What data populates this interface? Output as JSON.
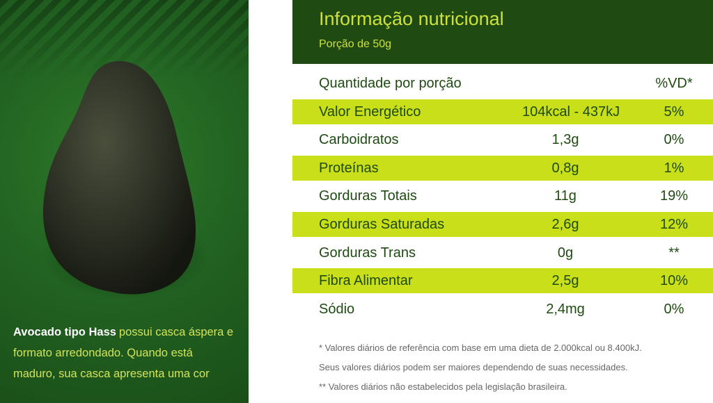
{
  "caption": {
    "bold": "Avocado tipo Hass",
    "text": "possui casca áspera e formato arredondado. Quando está maduro, sua casca apresenta uma cor"
  },
  "header": {
    "title": "Informação nutricional",
    "subtitle": "Porção de 50g"
  },
  "table": {
    "head": [
      "Quantidade por porção",
      "%VD*"
    ],
    "rows": [
      [
        "Valor Energético",
        "104kcal - 437kJ",
        "5%"
      ],
      [
        "Carboidratos",
        "1,3g",
        "0%"
      ],
      [
        "Proteínas",
        "0,8g",
        "1%"
      ],
      [
        "Gorduras Totais",
        "11g",
        "19%"
      ],
      [
        "Gorduras Saturadas",
        "2,6g",
        "12%"
      ],
      [
        "Gorduras Trans",
        "0g",
        "**"
      ],
      [
        "Fibra Alimentar",
        "2,5g",
        "10%"
      ],
      [
        "Sódio",
        "2,4mg",
        "0%"
      ]
    ]
  },
  "footnotes": [
    "* Valores diários de referência com base em uma dieta de 2.000kcal ou 8.400kJ.",
    "Seus valores diários podem ser maiores dependendo de suas necessidades.",
    "** Valores diários não estabelecidos pela legislação brasileira."
  ]
}
